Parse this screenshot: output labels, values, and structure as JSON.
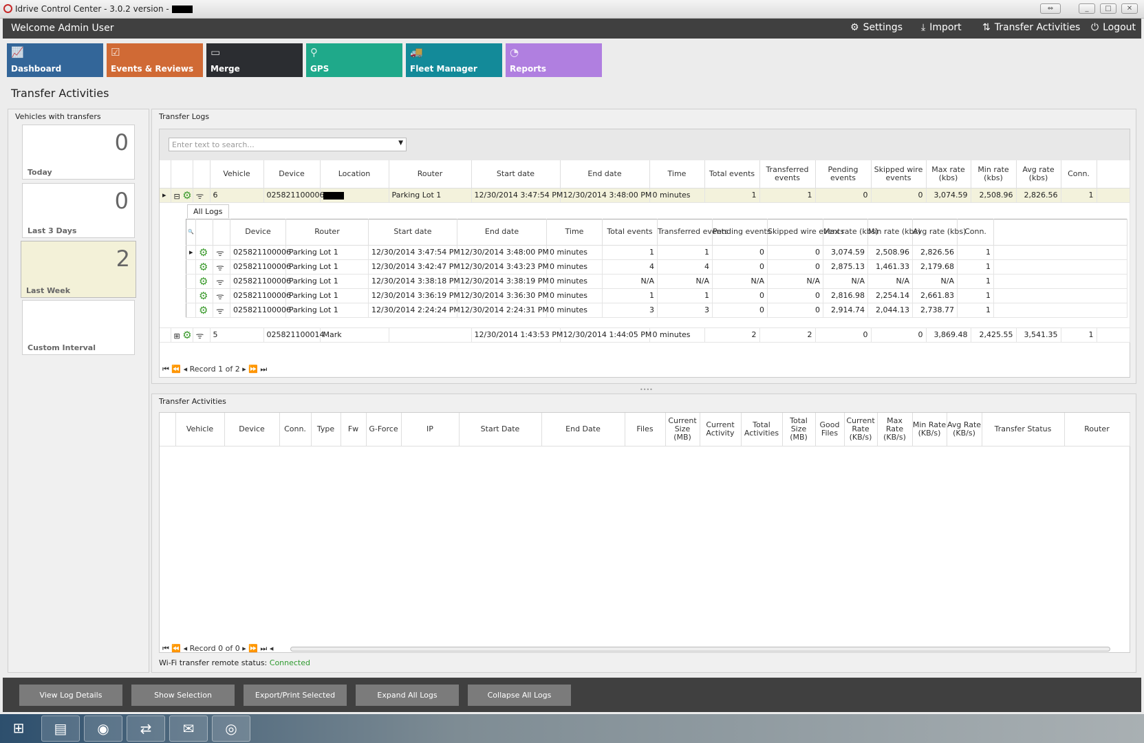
{
  "window": {
    "title": "Idrive Control Center - 3.0.2 version -",
    "controls": [
      "⇔",
      "_",
      "□",
      "✕"
    ]
  },
  "header": {
    "welcome": "Welcome Admin User",
    "buttons": [
      {
        "label": "Settings",
        "icon": "gears-icon"
      },
      {
        "label": "Import",
        "icon": "download-icon"
      },
      {
        "label": "Transfer Activities",
        "icon": "transfer-icon"
      },
      {
        "label": "Logout",
        "icon": "power-icon"
      }
    ]
  },
  "tiles": [
    {
      "label": "Dashboard",
      "color": "#336699"
    },
    {
      "label": "Events & Reviews",
      "color": "#d06a35"
    },
    {
      "label": "Merge",
      "color": "#2b2d31"
    },
    {
      "label": "GPS",
      "color": "#1fa98a"
    },
    {
      "label": "Fleet Manager",
      "color": "#138a99"
    },
    {
      "label": "Reports",
      "color": "#b07fe0"
    }
  ],
  "page_title": "Transfer Activities",
  "vehicles_panel": {
    "title": "Vehicles with transfers",
    "cards": [
      {
        "count": "0",
        "label": "Today"
      },
      {
        "count": "0",
        "label": "Last 3 Days"
      },
      {
        "count": "2",
        "label": "Last Week"
      },
      {
        "count": "",
        "label": "Custom Interval"
      }
    ]
  },
  "transfer_logs": {
    "title": "Transfer Logs",
    "search_placeholder": "Enter text to search...",
    "columns": [
      "Vehicle",
      "Device",
      "Location",
      "Router",
      "Start date",
      "End date",
      "Time",
      "Total events",
      "Transferred events",
      "Pending events",
      "Skipped wire events",
      "Max rate (kbs)",
      "Min rate (kbs)",
      "Avg rate (kbs)",
      "Conn."
    ],
    "rows": [
      {
        "expanded": true,
        "cells": [
          "6",
          "025821100006",
          "",
          "Parking Lot 1",
          "12/30/2014 3:47:54 PM",
          "12/30/2014 3:48:00 PM",
          "0 minutes",
          "1",
          "1",
          "0",
          "0",
          "3,074.59",
          "2,508.96",
          "2,826.56",
          "1"
        ]
      },
      {
        "expanded": false,
        "cells": [
          "5",
          "025821100014",
          "Mark",
          "",
          "12/30/2014 1:43:53 PM",
          "12/30/2014 1:44:05 PM",
          "0 minutes",
          "2",
          "2",
          "0",
          "0",
          "3,869.48",
          "2,425.55",
          "3,541.35",
          "1"
        ]
      }
    ],
    "detail": {
      "tab": "All Logs",
      "columns": [
        "Device",
        "Router",
        "Start date",
        "End date",
        "Time",
        "Total events",
        "Transferred events",
        "Pending events",
        "Skipped wire events",
        "Max rate (kbs)",
        "Min rate (kbs)",
        "Avg rate (kbs)",
        "Conn."
      ],
      "rows": [
        [
          "025821100006",
          "Parking Lot 1",
          "12/30/2014 3:47:54 PM",
          "12/30/2014 3:48:00 PM",
          "0 minutes",
          "1",
          "1",
          "0",
          "0",
          "3,074.59",
          "2,508.96",
          "2,826.56",
          "1"
        ],
        [
          "025821100006",
          "Parking Lot 1",
          "12/30/2014 3:42:47 PM",
          "12/30/2014 3:43:23 PM",
          "0 minutes",
          "4",
          "4",
          "0",
          "0",
          "2,875.13",
          "1,461.33",
          "2,179.68",
          "1"
        ],
        [
          "025821100006",
          "Parking Lot 1",
          "12/30/2014 3:38:18 PM",
          "12/30/2014 3:38:19 PM",
          "0 minutes",
          "N/A",
          "N/A",
          "N/A",
          "N/A",
          "N/A",
          "N/A",
          "N/A",
          "1"
        ],
        [
          "025821100006",
          "Parking Lot 1",
          "12/30/2014 3:36:19 PM",
          "12/30/2014 3:36:30 PM",
          "0 minutes",
          "1",
          "1",
          "0",
          "0",
          "2,816.98",
          "2,254.14",
          "2,661.83",
          "1"
        ],
        [
          "025821100006",
          "Parking Lot 1",
          "12/30/2014 2:24:24 PM",
          "12/30/2014 2:24:31 PM",
          "0 minutes",
          "3",
          "3",
          "0",
          "0",
          "2,914.74",
          "2,044.13",
          "2,738.77",
          "1"
        ]
      ]
    },
    "record_nav": "Record 1 of 2"
  },
  "transfer_activities": {
    "title": "Transfer Activities",
    "columns": [
      "",
      "Vehicle",
      "Device",
      "Conn.",
      "Type",
      "Fw",
      "G-Force",
      "IP",
      "Start Date",
      "End Date",
      "Files",
      "Current Size (MB)",
      "Current Activity",
      "Total Activities",
      "Total Size (MB)",
      "Good Files",
      "Current Rate (KB/s)",
      "Max Rate (KB/s)",
      "Min Rate (KB/s)",
      "Avg Rate (KB/s)",
      "Transfer Status",
      "Router"
    ],
    "record_nav": "Record 0 of 0"
  },
  "status": {
    "label": "Wi-Fi transfer remote status:",
    "value": "Connected",
    "value_color": "#2e9a2e"
  },
  "bottom_buttons": [
    "View Log Details",
    "Show Selection",
    "Export/Print Selected",
    "Expand All Logs",
    "Collapse All Logs"
  ],
  "taskbar": [
    {
      "icon": "windows-start-icon",
      "glyph": "⊞"
    },
    {
      "icon": "file-explorer-icon",
      "glyph": "▤"
    },
    {
      "icon": "firefox-icon",
      "glyph": "◉"
    },
    {
      "icon": "teamviewer-icon",
      "glyph": "⇄"
    },
    {
      "icon": "mail-icon",
      "glyph": "✉"
    },
    {
      "icon": "idrive-icon",
      "glyph": "◎"
    }
  ]
}
